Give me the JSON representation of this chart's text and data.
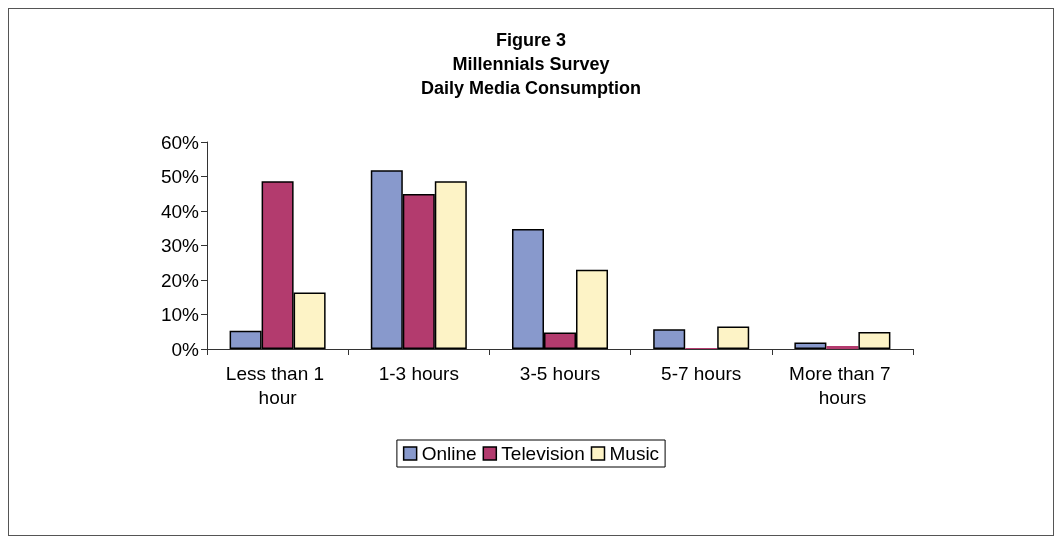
{
  "chart_data": {
    "type": "bar",
    "title": "Figure 3\nMillennials Survey\nDaily Media Consumption",
    "categories": [
      "Less than 1 hour",
      "1-3 hours",
      "3-5 hours",
      "5-7 hours",
      "More than 7 hours"
    ],
    "series": [
      {
        "name": "Online",
        "color": "#8899cc",
        "values": [
          5.3,
          51.8,
          34.8,
          5.7,
          1.9
        ]
      },
      {
        "name": "Television",
        "color": "#b33b6e",
        "values": [
          48.6,
          44.9,
          4.8,
          0.3,
          0.9
        ]
      },
      {
        "name": "Music",
        "color": "#fdf3c6",
        "values": [
          16.4,
          48.6,
          23.0,
          6.5,
          4.9
        ]
      }
    ],
    "ylim": [
      0,
      60
    ],
    "yticks": [
      {
        "value": 0,
        "label": "0%"
      },
      {
        "value": 10,
        "label": "10%"
      },
      {
        "value": 20,
        "label": "20%"
      },
      {
        "value": 30,
        "label": "30%"
      },
      {
        "value": 40,
        "label": "40%"
      },
      {
        "value": 50,
        "label": "50%"
      },
      {
        "value": 60,
        "label": "60%"
      }
    ],
    "grid": false,
    "legend": "bottom"
  }
}
